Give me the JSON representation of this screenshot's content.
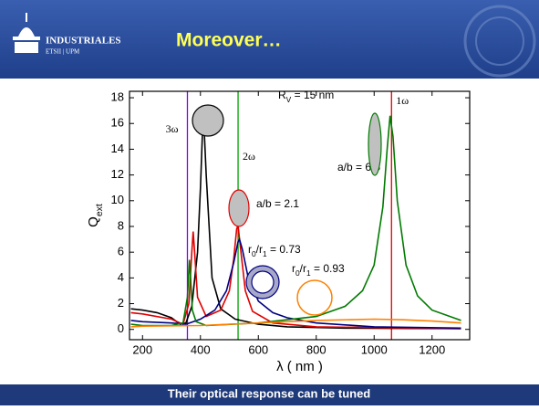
{
  "header": {
    "logo_name": "INDUSTRIALES",
    "logo_sub": "ETSII | UPM",
    "title": "Moreover…"
  },
  "caption": "Their optical response can be tuned",
  "chart_data": {
    "type": "line",
    "x_label": "λ ( nm )",
    "y_label": [
      {
        "t": "Q"
      },
      {
        "t": "ext",
        "sub": true
      }
    ],
    "xlim": [
      155,
      1330
    ],
    "xticks": [
      200,
      400,
      600,
      800,
      1000,
      1200
    ],
    "ylim": [
      -0.8,
      18.5
    ],
    "yticks": [
      0,
      2,
      4,
      6,
      8,
      10,
      12,
      14,
      16,
      18
    ],
    "series": [
      {
        "color": "#000000",
        "x": [
          160,
          200,
          250,
          300,
          330,
          350,
          370,
          390,
          400,
          410,
          420,
          440,
          470,
          520,
          600,
          700,
          900,
          1300
        ],
        "values": [
          1.6,
          1.5,
          1.3,
          0.9,
          0.4,
          0.5,
          1.8,
          6,
          11,
          17.1,
          12,
          4,
          1.6,
          0.8,
          0.4,
          0.2,
          0.1,
          0.05
        ]
      },
      {
        "color": "#e00000",
        "x": [
          160,
          200,
          300,
          340,
          360,
          370,
          375,
          380,
          390,
          420,
          470,
          500,
          515,
          525,
          530,
          540,
          555,
          580,
          650,
          800,
          1300
        ],
        "values": [
          1.3,
          1.2,
          0.8,
          0.4,
          2,
          6,
          7.6,
          6,
          2.5,
          1,
          1.5,
          3,
          5.5,
          7.8,
          8.1,
          6,
          3,
          1.4,
          0.5,
          0.2,
          0.05
        ]
      },
      {
        "color": "#000080",
        "x": [
          160,
          200,
          300,
          350,
          400,
          450,
          490,
          515,
          530,
          535,
          545,
          565,
          600,
          650,
          700,
          800,
          1000,
          1300
        ],
        "values": [
          0.7,
          0.6,
          0.5,
          0.4,
          0.8,
          1.5,
          3,
          5.2,
          6.8,
          7.0,
          6.2,
          4,
          2.2,
          1.3,
          0.9,
          0.5,
          0.2,
          0.1
        ]
      },
      {
        "color": "#007a00",
        "x": [
          160,
          200,
          300,
          340,
          355,
          362,
          366,
          372,
          385,
          420,
          600,
          800,
          900,
          960,
          1000,
          1030,
          1045,
          1055,
          1065,
          1080,
          1110,
          1150,
          1200,
          1300
        ],
        "values": [
          0.4,
          0.3,
          0.3,
          0.5,
          2.5,
          5.4,
          4,
          1.5,
          0.6,
          0.3,
          0.5,
          1,
          1.8,
          3,
          5,
          9.5,
          14,
          16.6,
          15,
          10,
          5,
          2.6,
          1.5,
          0.7
        ]
      },
      {
        "color": "#ff8000",
        "x": [
          160,
          200,
          400,
          600,
          800,
          1000,
          1100,
          1200,
          1300
        ],
        "values": [
          0.2,
          0.25,
          0.3,
          0.5,
          0.7,
          0.8,
          0.75,
          0.65,
          0.5
        ]
      }
    ],
    "vlines": [
      {
        "x": 355,
        "color": "#8000ff",
        "label": "3ω",
        "label_side": "left"
      },
      {
        "x": 530,
        "color": "#00a000",
        "label": "2ω",
        "label_side": "right"
      },
      {
        "x": 1060,
        "color": "#e00000",
        "label": "1ω",
        "label_side": "right"
      }
    ],
    "annotations": [
      [
        {
          "t": "R"
        },
        {
          "t": "V",
          "sub": true
        },
        {
          "t": " = 15 nm"
        }
      ],
      [
        {
          "t": "a/b = 6.5"
        }
      ],
      [
        {
          "t": "a/b = 2.1"
        }
      ],
      [
        {
          "t": "r"
        },
        {
          "t": "0",
          "sub": true
        },
        {
          "t": "/r"
        },
        {
          "t": "1",
          "sub": true
        },
        {
          "t": " = 0.73"
        }
      ],
      [
        {
          "t": "r"
        },
        {
          "t": "0",
          "sub": true
        },
        {
          "t": "/r"
        },
        {
          "t": "1",
          "sub": true
        },
        {
          "t": " = 0.93"
        }
      ]
    ]
  }
}
